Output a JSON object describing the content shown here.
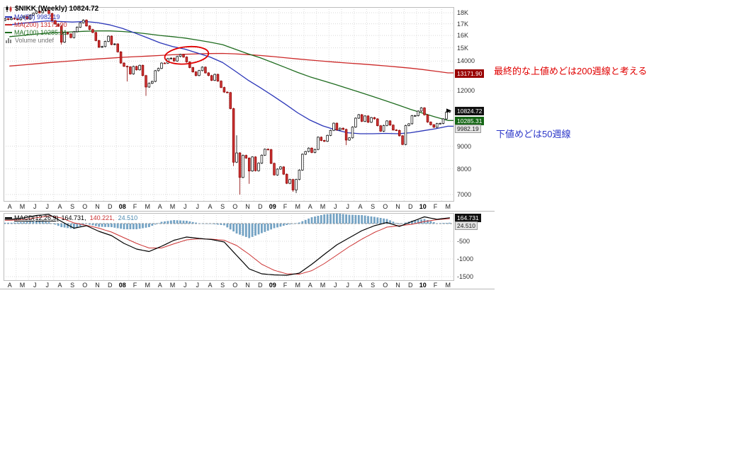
{
  "colors": {
    "ma50": "#2a35b8",
    "ma100": "#1f6c1f",
    "ma200": "#cc2929",
    "candle_up_fill": "#ffffff",
    "candle_up_stroke": "#000000",
    "candle_down_fill": "#cc3333",
    "candle_down_stroke": "#8b0000",
    "macd_line": "#000000",
    "macd_signal": "#cc3333",
    "macd_hist": "#74a3c4",
    "annotation_red": "#e00000",
    "annotation_blue": "#2a35c8"
  },
  "price_panel": {
    "legend": {
      "symbol": "$NIKK (Weekly) 10824.72",
      "ma50": "MA(50) 9982.19",
      "ma200": "MA(200) 13171.90",
      "ma100": "MA(100) 10285.31",
      "volume": "Volume undef"
    }
  },
  "macd_panel": {
    "legend": {
      "name": "MACD(12,26,9)",
      "macd_value": "164.731,",
      "signal_value": "140.221,",
      "hist_value": "24.510"
    }
  },
  "annotations": {
    "upper": "最終的な上値めどは200週線と考える",
    "lower": "下値めどは50週線"
  },
  "chart_data": [
    {
      "type": "candlestick",
      "title": "$NIKK (Weekly)",
      "timeframe": "weekly",
      "last_price": 10824.72,
      "y_scale": "log",
      "y_domain": [
        6746,
        18540
      ],
      "n_weeks": 144,
      "n_months": 36,
      "first_open": 17300,
      "weekly_closes": [
        17450,
        17380,
        17500,
        17420,
        17360,
        17550,
        17680,
        17420,
        17780,
        17950,
        18150,
        18000,
        18200,
        18240,
        17930,
        17280,
        16980,
        16800,
        15450,
        16250,
        16120,
        15820,
        16310,
        16700,
        17090,
        17330,
        16810,
        16500,
        16250,
        15580,
        15050,
        15100,
        15510,
        15940,
        15260,
        15310,
        14690,
        13860,
        13630,
        13590,
        13100,
        13620,
        13380,
        13700,
        12990,
        12240,
        12480,
        12600,
        13320,
        13480,
        13860,
        13850,
        14180,
        14220,
        14010,
        14340,
        14490,
        14300,
        13940,
        13540,
        13240,
        12990,
        13330,
        13570,
        13170,
        12990,
        12670,
        13070,
        12620,
        12210,
        11920,
        11890,
        10940,
        8280,
        8690,
        7650,
        8580,
        8460,
        7910,
        8510,
        7920,
        8240,
        8590,
        8860,
        8840,
        8230,
        7750,
        7990,
        8080,
        7780,
        7420,
        7570,
        7170,
        7570,
        7950,
        8630,
        8750,
        8910,
        8710,
        8850,
        9430,
        9270,
        9230,
        9520,
        9770,
        10140,
        9790,
        9880,
        9820,
        9290,
        9400,
        9940,
        10410,
        10600,
        10240,
        10530,
        10190,
        10440,
        10370,
        10010,
        9730,
        10020,
        10260,
        10040,
        9790,
        9770,
        9500,
        9080,
        10020,
        10110,
        10540,
        10550,
        10800,
        10980,
        10590,
        10200,
        10060,
        9930,
        10120,
        10130,
        10370,
        10750,
        10824.72
      ],
      "wick_overrides": {
        "18": {
          "low": 15260
        },
        "39": {
          "low": 12600
        },
        "45": {
          "low": 11690
        },
        "73": {
          "low": 8115
        },
        "74": {
          "high": 9520
        },
        "75": {
          "low": 6995
        },
        "78": {
          "low": 7400
        },
        "92": {
          "low": 7100
        },
        "93": {
          "low": 7054
        },
        "109": {
          "low": 9050
        }
      },
      "overlays": [
        {
          "name": "MA(200)",
          "current": 13171.9,
          "color_key": "ma200",
          "monthly_values": [
            13650,
            13720,
            13800,
            13880,
            13950,
            14020,
            14100,
            14160,
            14220,
            14280,
            14330,
            14370,
            14420,
            14470,
            14510,
            14540,
            14560,
            14570,
            14540,
            14480,
            14420,
            14340,
            14250,
            14160,
            14080,
            14000,
            13930,
            13860,
            13800,
            13730,
            13660,
            13580,
            13500,
            13400,
            13290,
            13171.9
          ]
        },
        {
          "name": "MA(100)",
          "current": 10285.31,
          "color_key": "ma100",
          "monthly_values": [
            15900,
            16000,
            16100,
            16200,
            16250,
            16300,
            16350,
            16380,
            16380,
            16330,
            16250,
            16130,
            16000,
            15900,
            15780,
            15620,
            15450,
            15250,
            14900,
            14550,
            14250,
            13900,
            13550,
            13200,
            12900,
            12650,
            12400,
            12150,
            11900,
            11650,
            11400,
            11150,
            10900,
            10680,
            10470,
            10285.31
          ]
        },
        {
          "name": "MA(50)",
          "current": 9982.19,
          "color_key": "ma50",
          "monthly_values": [
            16900,
            17050,
            17150,
            17250,
            17200,
            17150,
            17200,
            17100,
            16900,
            16600,
            16200,
            15800,
            15400,
            15100,
            14900,
            14600,
            14300,
            13900,
            13300,
            12700,
            12200,
            11700,
            11200,
            10700,
            10300,
            10000,
            9800,
            9650,
            9600,
            9600,
            9620,
            9600,
            9650,
            9750,
            9850,
            9982.19
          ]
        }
      ],
      "ellipse_annotation": {
        "week": 58.5,
        "price": 14430
      },
      "x_tick_labels": [
        "A",
        "M",
        "J",
        "J",
        "A",
        "S",
        "O",
        "N",
        "D",
        "08",
        "F",
        "M",
        "A",
        "M",
        "J",
        "J",
        "A",
        "S",
        "O",
        "N",
        "D",
        "09",
        "F",
        "M",
        "A",
        "M",
        "J",
        "J",
        "A",
        "S",
        "O",
        "N",
        "D",
        "10",
        "F",
        "M"
      ],
      "bold_tick_indices": [
        9,
        21,
        33
      ],
      "y_axis": {
        "plain": [
          {
            "text": "18K",
            "value": 18000
          },
          {
            "text": "17K",
            "value": 17000
          },
          {
            "text": "16K",
            "value": 16000
          },
          {
            "text": "15K",
            "value": 15000
          },
          {
            "text": "14000",
            "value": 14000
          },
          {
            "text": "12000",
            "value": 12000
          },
          {
            "text": "9000",
            "value": 9000
          },
          {
            "text": "8000",
            "value": 8000
          },
          {
            "text": "7000",
            "value": 7000
          }
        ],
        "boxed": [
          {
            "text": "13171.90",
            "value": 13171.9,
            "bg": "#990000",
            "fg": "#ffffff"
          },
          {
            "text": "10824.72",
            "value": 10824.72,
            "bg": "#111111",
            "fg": "#ffffff"
          },
          {
            "text": "10285.31",
            "value": 10285.31,
            "bg": "#156615",
            "fg": "#ffffff"
          },
          {
            "text": "9982.19",
            "value": 9982.19,
            "bg": "#e4e4e4",
            "fg": "#222222",
            "border": "#999999"
          }
        ]
      }
    },
    {
      "type": "macd",
      "title": "MACD(12,26,9)",
      "current": {
        "macd": 164.731,
        "signal": 140.221,
        "hist": 24.51
      },
      "y_scale": "linear",
      "y_domain": [
        -1600,
        300
      ],
      "monthly_macd": [
        120,
        160,
        230,
        260,
        60,
        -130,
        -60,
        -220,
        -340,
        -560,
        -720,
        -790,
        -640,
        -470,
        -380,
        -420,
        -450,
        -520,
        -900,
        -1280,
        -1420,
        -1450,
        -1460,
        -1400,
        -1150,
        -870,
        -600,
        -400,
        -200,
        -60,
        30,
        -80,
        60,
        190,
        120,
        164.731
      ],
      "monthly_signal": [
        95,
        115,
        165,
        215,
        160,
        20,
        -50,
        -130,
        -240,
        -400,
        -560,
        -690,
        -690,
        -570,
        -460,
        -430,
        -440,
        -470,
        -620,
        -870,
        -1150,
        -1320,
        -1420,
        -1430,
        -1330,
        -1130,
        -890,
        -650,
        -440,
        -250,
        -100,
        -60,
        -20,
        60,
        110,
        140.221
      ],
      "y_axis": {
        "plain": [
          {
            "text": "-500",
            "value": -500
          },
          {
            "text": "-1000",
            "value": -1000
          },
          {
            "text": "-1500",
            "value": -1500
          }
        ],
        "boxed": [
          {
            "text": "164.731",
            "value": 164.731,
            "bg": "#111111",
            "fg": "#ffffff"
          },
          {
            "text": "24.510",
            "value": 24.51,
            "bg": "#e4e4e4",
            "fg": "#222222",
            "border": "#999999"
          }
        ]
      }
    }
  ]
}
